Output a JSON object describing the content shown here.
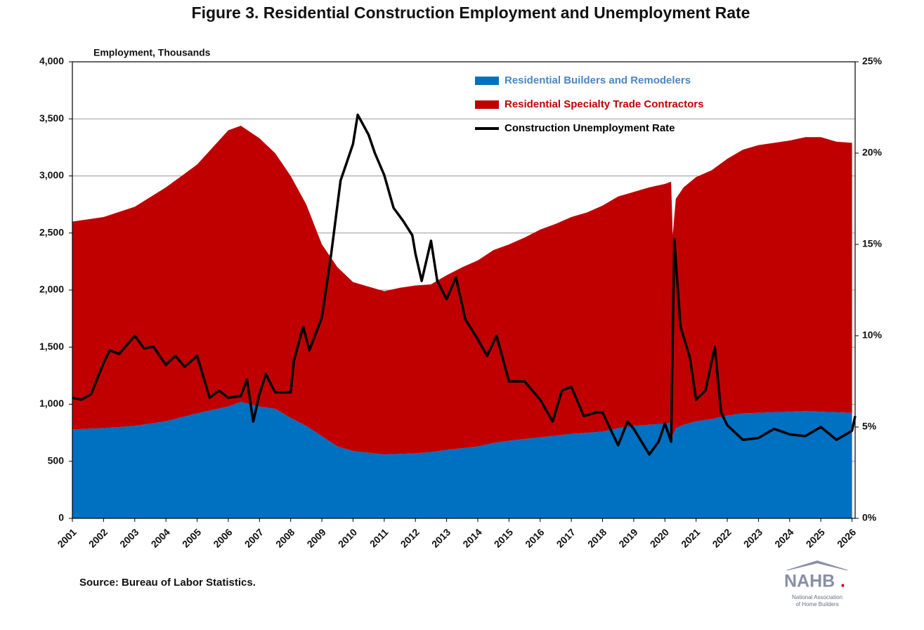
{
  "chart_data": {
    "type": "area",
    "stacked": true,
    "title": "Figure 3. Residential Construction Employment and Unemployment Rate",
    "y_axis_label": "Employment, Thousands",
    "source": "Source: Bureau of Labor Statistics.",
    "logo": {
      "name": "NAHB",
      "suffix": ".",
      "subtitle_1": "National Association",
      "subtitle_2": "of Home Builders"
    },
    "xlim": [
      2001,
      2026.1
    ],
    "xticks": [
      2001,
      2002,
      2003,
      2004,
      2005,
      2006,
      2007,
      2008,
      2009,
      2010,
      2011,
      2012,
      2013,
      2014,
      2015,
      2016,
      2017,
      2018,
      2019,
      2020,
      2021,
      2022,
      2023,
      2024,
      2025,
      2026
    ],
    "ylim": [
      0,
      4000
    ],
    "yticks": [
      0,
      500,
      {
        "value": 1000,
        "label": "1,000"
      },
      {
        "value": 1500,
        "label": "1,500"
      },
      {
        "value": 2000,
        "label": "2,000"
      },
      {
        "value": 2500,
        "label": "2,500"
      },
      {
        "value": 3000,
        "label": "3,000"
      },
      {
        "value": 3500,
        "label": "3,500"
      },
      {
        "value": 4000,
        "label": "4,000"
      }
    ],
    "y2lim": [
      0,
      25
    ],
    "y2ticks": [
      {
        "value": 0,
        "label": "0%"
      },
      {
        "value": 5,
        "label": "5%"
      },
      {
        "value": 10,
        "label": "10%"
      },
      {
        "value": 15,
        "label": "15%"
      },
      {
        "value": 20,
        "label": "20%"
      },
      {
        "value": 25,
        "label": "25%"
      }
    ],
    "grid": true,
    "legend": "top-right",
    "x": [
      2001,
      2002,
      2003,
      2004,
      2005,
      2005.5,
      2006,
      2006.4,
      2007,
      2007.5,
      2008,
      2008.5,
      2009,
      2009.5,
      2010,
      2010.5,
      2011,
      2011.5,
      2012,
      2012.5,
      2013,
      2013.5,
      2014,
      2014.5,
      2015,
      2015.5,
      2016,
      2016.5,
      2017,
      2017.5,
      2018,
      2018.5,
      2019,
      2019.5,
      2020,
      2020.2,
      2020.25,
      2020.35,
      2020.6,
      2021,
      2021.5,
      2022,
      2022.5,
      2023,
      2023.5,
      2024,
      2024.5,
      2025,
      2025.5,
      2026
    ],
    "series": [
      {
        "name": "Residential Builders and Remodelers",
        "color": "#0070c0",
        "values": [
          780,
          790,
          810,
          850,
          920,
          950,
          980,
          1020,
          980,
          960,
          880,
          810,
          720,
          630,
          590,
          575,
          560,
          565,
          570,
          580,
          600,
          615,
          630,
          660,
          680,
          695,
          710,
          725,
          740,
          750,
          760,
          790,
          810,
          820,
          830,
          840,
          720,
          790,
          820,
          850,
          870,
          900,
          920,
          925,
          930,
          935,
          940,
          935,
          930,
          925
        ]
      },
      {
        "name": "Residential Specialty Trade Contractors",
        "color": "#c00000",
        "values": [
          1820,
          1850,
          1920,
          2050,
          2180,
          2300,
          2420,
          2420,
          2350,
          2240,
          2120,
          1940,
          1680,
          1570,
          1480,
          1455,
          1430,
          1455,
          1470,
          1470,
          1530,
          1585,
          1630,
          1690,
          1720,
          1765,
          1820,
          1855,
          1900,
          1930,
          1980,
          2030,
          2050,
          2080,
          2100,
          2110,
          1760,
          2010,
          2080,
          2140,
          2180,
          2250,
          2310,
          2345,
          2360,
          2375,
          2400,
          2405,
          2370,
          2365
        ]
      },
      {
        "name": "Construction Unemployment Rate",
        "color": "#000000",
        "type": "line",
        "axis": "y2",
        "x": [
          2001.0,
          2001.3,
          2001.6,
          2002.0,
          2002.2,
          2002.5,
          2003.0,
          2003.3,
          2003.6,
          2004.0,
          2004.3,
          2004.6,
          2005.0,
          2005.4,
          2005.7,
          2006.0,
          2006.4,
          2006.6,
          2006.8,
          2007.0,
          2007.2,
          2007.5,
          2008.0,
          2008.1,
          2008.4,
          2008.6,
          2009.0,
          2009.3,
          2009.6,
          2009.8,
          2010.0,
          2010.15,
          2010.5,
          2010.7,
          2011.0,
          2011.3,
          2011.6,
          2011.9,
          2012.0,
          2012.2,
          2012.5,
          2012.7,
          2013.0,
          2013.3,
          2013.6,
          2014.0,
          2014.3,
          2014.6,
          2015.0,
          2015.5,
          2016.0,
          2016.4,
          2016.7,
          2017.0,
          2017.4,
          2017.8,
          2018.0,
          2018.5,
          2018.8,
          2019.0,
          2019.5,
          2019.8,
          2020.0,
          2020.2,
          2020.3,
          2020.5,
          2020.8,
          2021.0,
          2021.3,
          2021.6,
          2021.8,
          2022.0,
          2022.5,
          2023.0,
          2023.5,
          2024.0,
          2024.5,
          2025.0,
          2025.5,
          2026.0,
          2026.1
        ],
        "values": [
          6.6,
          6.5,
          6.8,
          8.5,
          9.2,
          9.0,
          10.0,
          9.3,
          9.4,
          8.4,
          8.9,
          8.3,
          8.9,
          6.6,
          7.0,
          6.6,
          6.7,
          7.6,
          5.3,
          6.8,
          7.9,
          6.9,
          6.9,
          8.6,
          10.5,
          9.2,
          11.0,
          14.5,
          18.5,
          19.5,
          20.5,
          22.1,
          21.0,
          20.0,
          18.8,
          17.0,
          16.3,
          15.5,
          14.5,
          13.0,
          15.2,
          13.0,
          12.0,
          13.2,
          10.9,
          9.8,
          8.9,
          10.0,
          7.5,
          7.5,
          6.5,
          5.3,
          7.0,
          7.2,
          5.6,
          5.8,
          5.8,
          4.0,
          5.3,
          4.9,
          3.5,
          4.2,
          5.2,
          4.2,
          15.3,
          10.5,
          8.8,
          6.5,
          7.0,
          9.4,
          5.8,
          5.1,
          4.3,
          4.4,
          4.9,
          4.6,
          4.5,
          5.0,
          4.3,
          4.8,
          5.6
        ]
      }
    ]
  }
}
